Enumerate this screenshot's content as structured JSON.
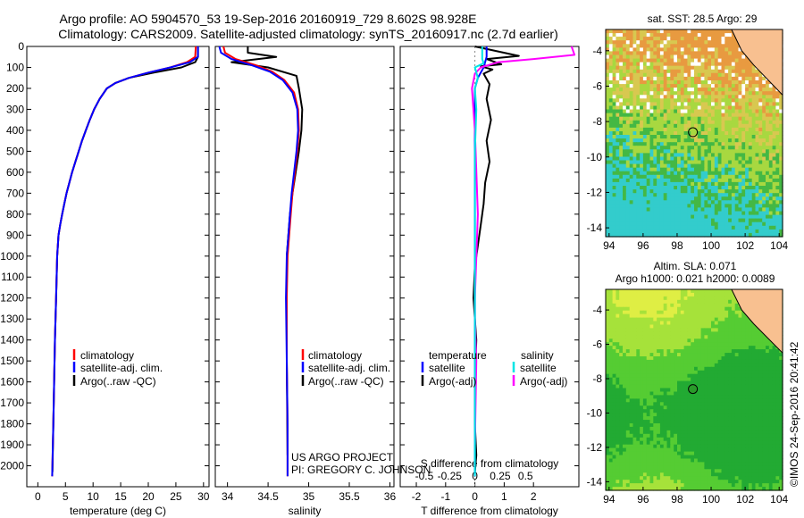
{
  "header": {
    "title": "Argo profile: AO 5904570_53 19-Sep-2016 20160919_729 8.602S 98.928E",
    "subtitle": "Climatology: CARS2009. Satellite-adjusted climatology: synTS_20160917.nc (2.7d earlier)"
  },
  "credits": {
    "line1": "US ARGO PROJECT",
    "line2": "PI: GREGORY C. JOHNSON",
    "stamp": "©IMOS 24-Sep-2016 20:41:42"
  },
  "colors": {
    "climatology": "#ff0000",
    "satellite_clim": "#0000ff",
    "argo": "#000000",
    "salinity_sat": "#00e5e5",
    "salinity_argo": "#ff00ff"
  },
  "legends": {
    "temp_panel": [
      "climatology",
      "satellite-adj. clim.",
      "Argo(..raw -QC)"
    ],
    "sal_panel": [
      "climatology",
      "satellite-adj. clim.",
      "Argo(..raw -QC)"
    ],
    "diff_panel": {
      "temp_header": "temperature",
      "sal_header": "salinity",
      "temp_items": [
        "satellite",
        "Argo(-adj)"
      ],
      "sal_items": [
        "satellite",
        "Argo(-adj)"
      ]
    }
  },
  "maps": {
    "top_title": "sat. SST: 28.5 Argo: 29",
    "bottom_title_1": "Altim. SLA: 0.071",
    "bottom_title_2": "Argo h1000: 0.021 h2000: 0.0089",
    "float_lon": 98.928,
    "float_lat": -8.602,
    "xticks": [
      "94",
      "96",
      "98",
      "100",
      "102",
      "104"
    ],
    "yticks": [
      "-4",
      "-6",
      "-8",
      "-10",
      "-12",
      "-14"
    ]
  },
  "chart_data": [
    {
      "type": "line",
      "xlabel": "temperature (deg C)",
      "ylabel": "",
      "xlim": [
        -2,
        31
      ],
      "ylim": [
        2100,
        0
      ],
      "xticks": [
        "0",
        "5",
        "10",
        "15",
        "20",
        "25",
        "30"
      ],
      "yticks": [
        "0",
        "100",
        "200",
        "300",
        "400",
        "500",
        "600",
        "700",
        "800",
        "900",
        "1000",
        "1100",
        "1200",
        "1300",
        "1400",
        "1500",
        "1600",
        "1700",
        "1800",
        "1900",
        "2000"
      ],
      "series": [
        {
          "name": "climatology",
          "x": [
            28.6,
            28.5,
            27,
            24,
            20,
            16.5,
            14,
            12.5,
            11.2,
            10.2,
            9.4,
            8.7,
            8,
            7.4,
            6.8,
            6.2,
            5.7,
            5.2,
            4.8,
            4.4,
            4.05,
            3.75,
            3.5,
            3.3,
            3.1,
            2.95,
            2.8,
            2.6
          ],
          "y": [
            0,
            50,
            75,
            100,
            125,
            150,
            175,
            200,
            250,
            300,
            350,
            400,
            450,
            500,
            550,
            600,
            650,
            700,
            750,
            800,
            850,
            900,
            1000,
            1200,
            1400,
            1600,
            1800,
            2050
          ]
        },
        {
          "name": "satellite-adj. clim.",
          "x": [
            29,
            29,
            27.5,
            24,
            20,
            16.5,
            14,
            12.5,
            11.2,
            10.2,
            9.4,
            8.7,
            8,
            7.4,
            6.8,
            6.2,
            5.7,
            5.2,
            4.8,
            4.4,
            4.05,
            3.75,
            3.5,
            3.3,
            3.1,
            2.95,
            2.8,
            2.6
          ],
          "y": [
            0,
            50,
            75,
            100,
            125,
            150,
            175,
            200,
            250,
            300,
            350,
            400,
            450,
            500,
            550,
            600,
            650,
            700,
            750,
            800,
            850,
            900,
            1000,
            1200,
            1400,
            1600,
            1800,
            2050
          ]
        },
        {
          "name": "Argo(..raw -QC)",
          "x": [
            29,
            29,
            28.5,
            26,
            21,
            16.5,
            14,
            12.5,
            11.2,
            10.2,
            9.4,
            8.7,
            8,
            7.4,
            6.8,
            6.2,
            5.7,
            5.2,
            4.8,
            4.4,
            4.05,
            3.75,
            3.5,
            3.3,
            3.1,
            2.95,
            2.8,
            2.65
          ],
          "y": [
            0,
            50,
            75,
            100,
            125,
            150,
            175,
            200,
            250,
            300,
            350,
            400,
            450,
            500,
            550,
            600,
            650,
            700,
            750,
            800,
            850,
            900,
            1000,
            1200,
            1400,
            1600,
            1800,
            2030
          ]
        }
      ]
    },
    {
      "type": "line",
      "xlabel": "salinity",
      "ylabel": "",
      "xlim": [
        33.85,
        36.05
      ],
      "ylim": [
        2100,
        0
      ],
      "xticks": [
        "34",
        "34.5",
        "35",
        "35.5",
        "36"
      ],
      "series": [
        {
          "name": "climatology",
          "x": [
            33.95,
            33.97,
            34.1,
            34.35,
            34.55,
            34.7,
            34.82,
            34.87,
            34.88,
            34.86,
            34.83,
            34.8,
            34.78,
            34.76,
            34.74,
            34.73,
            34.73,
            34.74,
            34.74
          ],
          "y": [
            0,
            30,
            60,
            90,
            120,
            160,
            220,
            300,
            400,
            500,
            600,
            700,
            800,
            900,
            1000,
            1200,
            1500,
            1800,
            2050
          ]
        },
        {
          "name": "satellite-adj. clim.",
          "x": [
            33.9,
            33.92,
            34.05,
            34.3,
            34.52,
            34.68,
            34.8,
            34.86,
            34.87,
            34.85,
            34.82,
            34.79,
            34.77,
            34.75,
            34.73,
            34.72,
            34.73,
            34.74,
            34.74
          ],
          "y": [
            0,
            30,
            60,
            90,
            120,
            160,
            220,
            300,
            400,
            500,
            600,
            700,
            800,
            900,
            1000,
            1200,
            1500,
            1800,
            2050
          ]
        },
        {
          "name": "Argo(..raw -QC)",
          "x": [
            34.25,
            34.25,
            34.6,
            34.05,
            34.5,
            34.85,
            34.88,
            34.92,
            34.91,
            34.88,
            34.84,
            34.8,
            34.77,
            34.75,
            34.73,
            34.73,
            34.73,
            34.74
          ],
          "y": [
            0,
            30,
            50,
            75,
            100,
            140,
            200,
            300,
            400,
            500,
            600,
            700,
            800,
            900,
            1000,
            1200,
            1500,
            1950
          ]
        }
      ]
    },
    {
      "type": "line",
      "xlabel": "T difference from climatology",
      "x2label": "S difference from climatology",
      "ylabel": "",
      "xlim": [
        -2.55,
        3.55
      ],
      "ylim": [
        2100,
        0
      ],
      "xticks": [
        "-2",
        "-1",
        "0",
        "1",
        "2"
      ],
      "x2ticks": [
        "-0.5",
        "-0.25",
        "0",
        "0.25",
        "0.5"
      ],
      "series": [
        {
          "name": "temperature satellite",
          "x": [
            0.4,
            0.4,
            0.3,
            0.1,
            0,
            0,
            0,
            0,
            0,
            0
          ],
          "y": [
            0,
            50,
            100,
            150,
            200,
            400,
            800,
            1200,
            1600,
            2050
          ]
        },
        {
          "name": "temperature Argo(-adj)",
          "x": [
            0,
            1.5,
            0.4,
            0.9,
            0.2,
            0.6,
            0.3,
            0.5,
            0.4,
            0.55,
            0.4,
            0.5,
            0.35,
            0.3,
            0.2,
            0.1,
            0,
            -0.05,
            0.05,
            0,
            0,
            0.05,
            0
          ],
          "y": [
            0,
            45,
            60,
            85,
            95,
            110,
            130,
            180,
            250,
            350,
            450,
            550,
            650,
            750,
            850,
            950,
            1050,
            1200,
            1400,
            1600,
            1800,
            1950,
            2030
          ]
        },
        {
          "name": "salinity satellite",
          "x": [
            0.25,
            0.25,
            0.3,
            0,
            0.1,
            0,
            0.05,
            0,
            0,
            0,
            0
          ],
          "y": [
            0,
            60,
            80,
            100,
            150,
            200,
            300,
            500,
            1000,
            1500,
            2050
          ]
        },
        {
          "name": "salinity Argo(-adj)",
          "x": [
            3.3,
            3.4,
            2,
            0.8,
            0.2,
            0,
            -0.1,
            0,
            0.1,
            0,
            0,
            0.05,
            0
          ],
          "y": [
            0,
            40,
            60,
            75,
            100,
            130,
            200,
            400,
            800,
            1200,
            1300,
            1500,
            1900
          ]
        }
      ]
    }
  ]
}
